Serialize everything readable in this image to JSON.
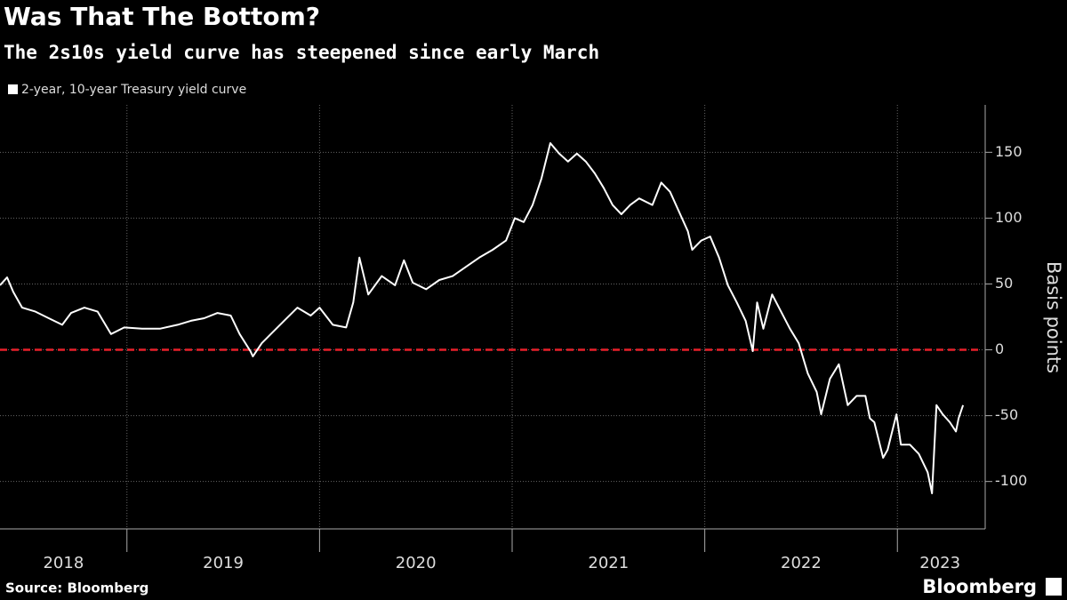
{
  "chart_data": {
    "type": "line",
    "title": "Was That The Bottom?",
    "subtitle": "The 2s10s yield curve has steepened since early March",
    "y_label": "Basis points",
    "source": "Source: Bloomberg",
    "brand": "Bloomberg",
    "x": [
      2018.341,
      2018.378,
      2018.41,
      2018.456,
      2018.525,
      2018.594,
      2018.664,
      2018.71,
      2018.779,
      2018.848,
      2018.917,
      2018.986,
      2019.078,
      2019.171,
      2019.263,
      2019.332,
      2019.401,
      2019.47,
      2019.539,
      2019.585,
      2019.641,
      2019.654,
      2019.7,
      2019.747,
      2019.816,
      2019.885,
      2019.954,
      2020.0,
      2020.069,
      2020.138,
      2020.175,
      2020.207,
      2020.253,
      2020.323,
      2020.392,
      2020.438,
      2020.484,
      2020.553,
      2020.622,
      2020.691,
      2020.76,
      2020.829,
      2020.899,
      2020.968,
      2021.014,
      2021.06,
      2021.106,
      2021.152,
      2021.198,
      2021.244,
      2021.29,
      2021.336,
      2021.382,
      2021.429,
      2021.475,
      2021.521,
      2021.567,
      2021.613,
      2021.659,
      2021.728,
      2021.774,
      2021.82,
      2021.866,
      2021.912,
      2021.935,
      2021.982,
      2022.028,
      2022.074,
      2022.12,
      2022.166,
      2022.212,
      2022.249,
      2022.272,
      2022.304,
      2022.35,
      2022.396,
      2022.442,
      2022.488,
      2022.535,
      2022.581,
      2022.604,
      2022.65,
      2022.696,
      2022.742,
      2022.788,
      2022.834,
      2022.857,
      2022.88,
      2022.926,
      2022.949,
      2022.995,
      2023.018,
      2023.065,
      2023.111,
      2023.157,
      2023.18,
      2023.203,
      2023.235,
      2023.272,
      2023.304,
      2023.318,
      2023.341
    ],
    "series": [
      {
        "name": "2-year, 10-year Treasury yield curve",
        "color": "#ffffff",
        "values": [
          49,
          55,
          44,
          32,
          29,
          24,
          19,
          28,
          32,
          29,
          12,
          17,
          16,
          16,
          19,
          22,
          24,
          28,
          26,
          12,
          -1,
          -5,
          5,
          12,
          22,
          32,
          26,
          32,
          19,
          17,
          36,
          70,
          42,
          56,
          49,
          68,
          51,
          46,
          53,
          56,
          63,
          70,
          76,
          83,
          100,
          97,
          110,
          130,
          157,
          149,
          143,
          149,
          143,
          134,
          123,
          110,
          103,
          110,
          115,
          110,
          127,
          120,
          105,
          90,
          76,
          83,
          86,
          70,
          49,
          36,
          22,
          -1,
          36,
          16,
          42,
          29,
          16,
          5,
          -18,
          -32,
          -49,
          -22,
          -11,
          -42,
          -35,
          -35,
          -52,
          -55,
          -82,
          -76,
          -49,
          -72,
          -72,
          -79,
          -93,
          -109,
          -42,
          -49,
          -55,
          -62,
          -52,
          -42
        ]
      }
    ],
    "xlim": [
      2018.341,
      2023.442
    ],
    "xticks": [
      2019,
      2020,
      2021,
      2022,
      2023
    ],
    "year_labels": [
      2018,
      2019,
      2020,
      2021,
      2022,
      2023
    ],
    "ylim": [
      -136,
      186
    ],
    "yticks": [
      -100,
      -50,
      0,
      50,
      100,
      150
    ],
    "reference_line": {
      "value": 0,
      "color": "#e8202a"
    },
    "grid": true
  }
}
